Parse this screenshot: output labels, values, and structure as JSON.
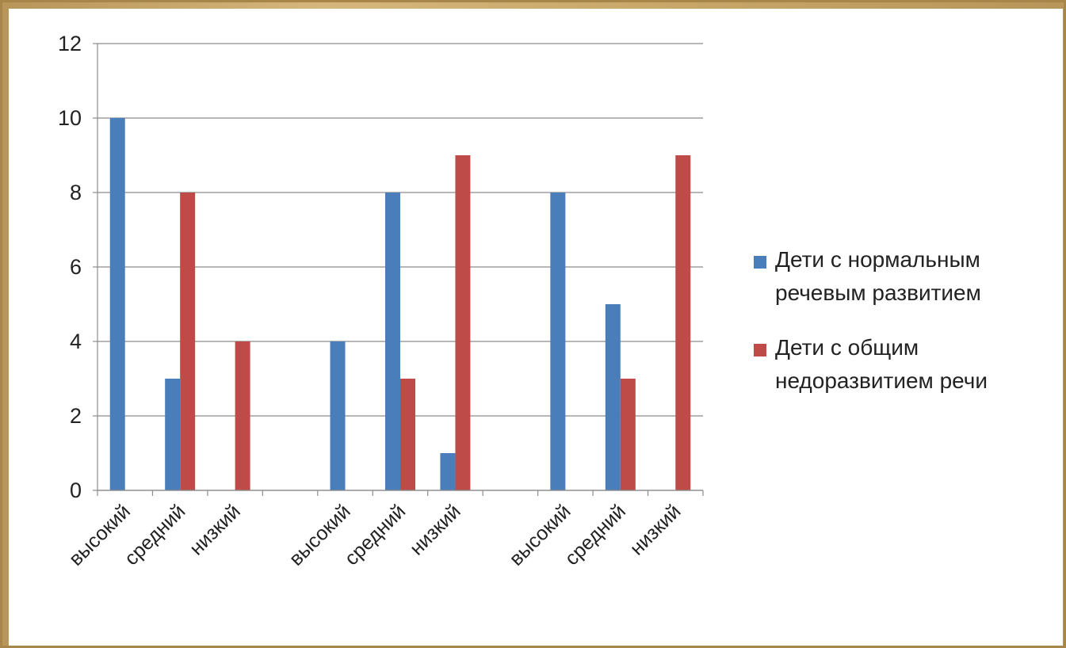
{
  "chart_data": {
    "type": "bar",
    "categories": [
      "высокий",
      "средний",
      "низкий",
      "",
      "высокий",
      "средний",
      "низкий",
      "",
      "высокий",
      "средний",
      "низкий"
    ],
    "series": [
      {
        "name": "Дети с нормальным речевым развитием",
        "legend_lines": [
          "Дети с нормальным",
          "речевым развитием"
        ],
        "color": "#4a7ebb",
        "values": [
          10,
          3,
          0,
          null,
          4,
          8,
          1,
          null,
          8,
          5,
          0
        ]
      },
      {
        "name": "Дети с общим недоразвитием речи",
        "legend_lines": [
          "Дети с общим",
          "недоразвитием речи"
        ],
        "color": "#be4b48",
        "values": [
          0,
          8,
          4,
          null,
          0,
          3,
          9,
          null,
          0,
          3,
          9
        ]
      }
    ],
    "yticks": [
      "0",
      "2",
      "4",
      "6",
      "8",
      "10",
      "12"
    ],
    "ylim": [
      0,
      12
    ],
    "grid": true,
    "legend_position": "right",
    "title": "",
    "xlabel": "",
    "ylabel": ""
  }
}
